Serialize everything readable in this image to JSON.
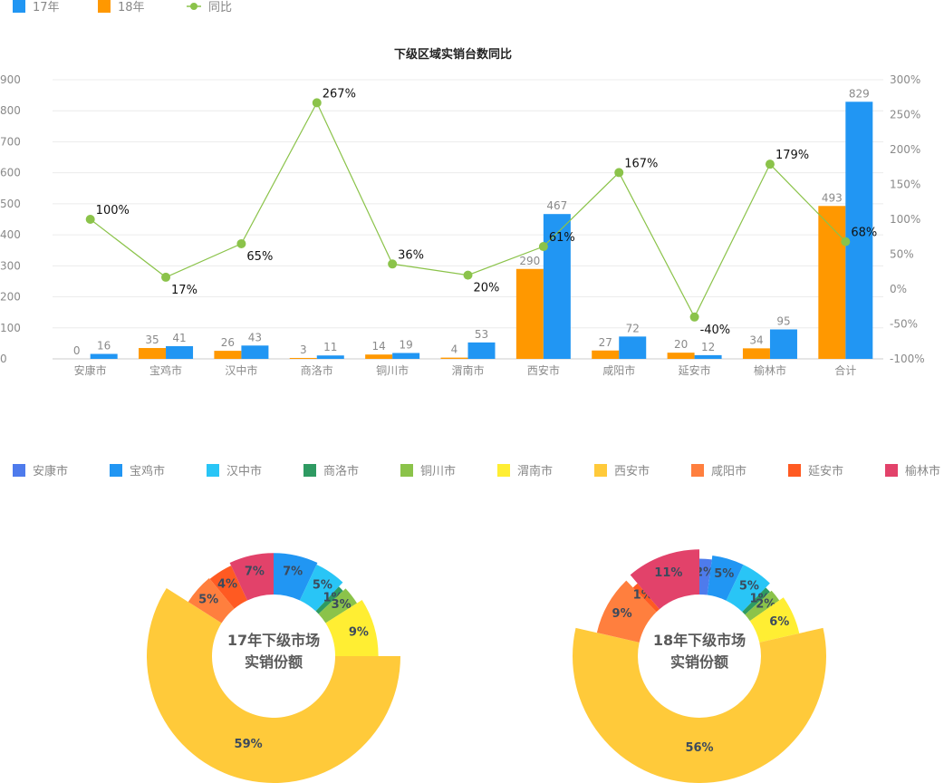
{
  "bar_legend": [
    {
      "label": "17年",
      "color": "#2196f3",
      "kind": "box"
    },
    {
      "label": "18年",
      "color": "#ff9800",
      "kind": "box"
    },
    {
      "label": "同比",
      "color": "#8bc34a",
      "kind": "line"
    }
  ],
  "pie_legend": [
    {
      "label": "安康市",
      "color": "#4e7bec"
    },
    {
      "label": "宝鸡市",
      "color": "#2196f3"
    },
    {
      "label": "汉中市",
      "color": "#29c5f6"
    },
    {
      "label": "商洛市",
      "color": "#2e9a62"
    },
    {
      "label": "铜川市",
      "color": "#8bc34a"
    },
    {
      "label": "渭南市",
      "color": "#ffee33"
    },
    {
      "label": "西安市",
      "color": "#ffca3a"
    },
    {
      "label": "咸阳市",
      "color": "#ff7f3e"
    },
    {
      "label": "延安市",
      "color": "#ff5a22"
    },
    {
      "label": "榆林市",
      "color": "#e2426a"
    }
  ],
  "chart_data": [
    {
      "type": "bar",
      "title": "下级区域实销台数同比",
      "categories": [
        "安康市",
        "宝鸡市",
        "汉中市",
        "商洛市",
        "铜川市",
        "渭南市",
        "西安市",
        "咸阳市",
        "延安市",
        "榆林市",
        "合计"
      ],
      "series": [
        {
          "name": "18年",
          "type": "bar",
          "color": "#ff9800",
          "values": [
            0,
            35,
            26,
            3,
            14,
            4,
            290,
            27,
            20,
            34,
            493
          ]
        },
        {
          "name": "17年",
          "type": "bar",
          "color": "#2196f3",
          "values": [
            16,
            41,
            43,
            11,
            19,
            53,
            467,
            72,
            12,
            95,
            829
          ]
        },
        {
          "name": "同比",
          "type": "line",
          "axis": "right",
          "color": "#8bc34a",
          "values": [
            100,
            17,
            65,
            267,
            36,
            20,
            61,
            167,
            -40,
            179,
            68
          ],
          "labels": [
            "100%",
            "17%",
            "65%",
            "267%",
            "36%",
            "20%",
            "61%",
            "167%",
            "-40%",
            "179%",
            "68%"
          ]
        }
      ],
      "ylim": [
        0,
        900
      ],
      "yticks": [
        "0",
        "100",
        "200",
        "300",
        "400",
        "500",
        "600",
        "700",
        "800",
        "900"
      ],
      "y2lim": [
        -100,
        300
      ],
      "y2ticks": [
        "-100%",
        "-50%",
        "0%",
        "50%",
        "100%",
        "150%",
        "200%",
        "250%",
        "300%"
      ],
      "grid": true,
      "legend": "top-left"
    },
    {
      "type": "pie",
      "title": "17年下级市场实销份额",
      "title_lines": [
        "17年下级市场",
        "实销份额"
      ],
      "labels": [
        "安康市",
        "宝鸡市",
        "汉中市",
        "商洛市",
        "铜川市",
        "渭南市",
        "西安市",
        "咸阳市",
        "延安市",
        "榆林市"
      ],
      "values": [
        0,
        7,
        5,
        1,
        3,
        9,
        59,
        5,
        4,
        7
      ],
      "value_labels": [
        "",
        "7%",
        "5%",
        "1%",
        "3%",
        "9%",
        "59%",
        "5%",
        "4%",
        "7%"
      ],
      "donut": true,
      "rose": true
    },
    {
      "type": "pie",
      "title": "18年下级市场实销份额",
      "title_lines": [
        "18年下级市场",
        "实销份额"
      ],
      "labels": [
        "安康市",
        "宝鸡市",
        "汉中市",
        "商洛市",
        "铜川市",
        "渭南市",
        "西安市",
        "咸阳市",
        "延安市",
        "榆林市"
      ],
      "values": [
        2,
        5,
        5,
        1,
        2,
        6,
        56,
        9,
        1,
        11
      ],
      "value_labels": [
        "2%",
        "5%",
        "5%",
        "1%",
        "2%",
        "6%",
        "56%",
        "9%",
        "1%",
        "11%"
      ],
      "donut": true,
      "rose": true
    }
  ]
}
